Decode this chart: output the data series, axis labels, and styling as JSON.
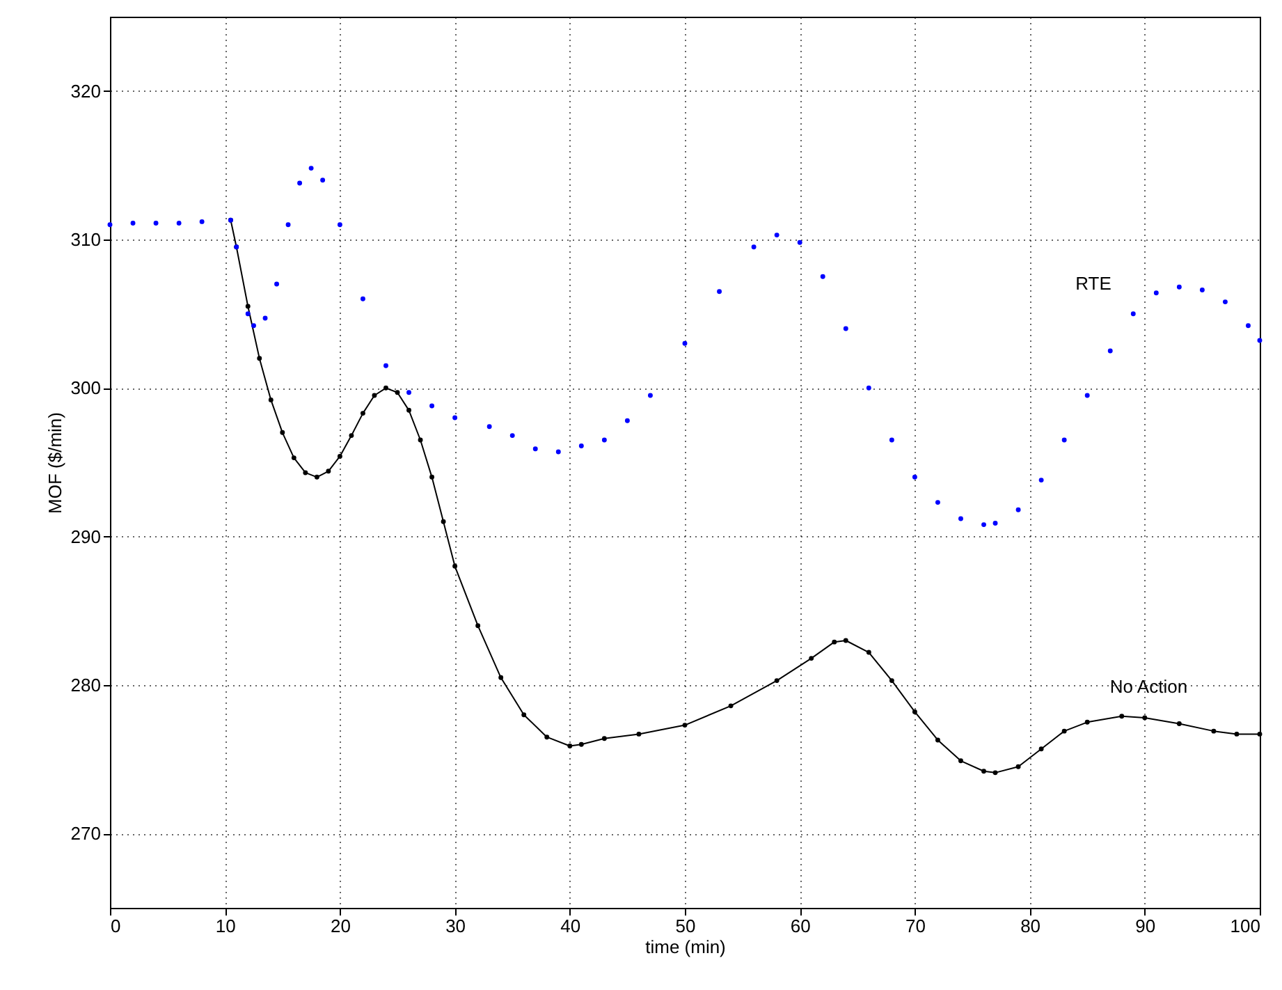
{
  "chart_data": {
    "type": "line",
    "xlabel": "time (min)",
    "ylabel": "MOF ($/min)",
    "xlim": [
      0,
      100
    ],
    "xticks": [
      0,
      10,
      20,
      30,
      40,
      50,
      60,
      70,
      80,
      90,
      100
    ],
    "ylim": [
      265,
      325
    ],
    "yticks": [
      270,
      280,
      290,
      300,
      310,
      320
    ],
    "grid": true,
    "series": [
      {
        "type": "scatter",
        "marker": "circle",
        "color": "#0000ff",
        "x": [
          0,
          2,
          4,
          6,
          8,
          10.5,
          11,
          12,
          12.5,
          13.5,
          14.5,
          15.5,
          16.5,
          17.5,
          18.5,
          20,
          22,
          24,
          26,
          28,
          30,
          33,
          35,
          37,
          39,
          41,
          43,
          45,
          47,
          50,
          53,
          56,
          58,
          60,
          62,
          64,
          66,
          68,
          70,
          72,
          74,
          76,
          77,
          79,
          81,
          83,
          85,
          87,
          89,
          91,
          93,
          95,
          97,
          99,
          100
        ],
        "name": "RTE",
        "values": [
          311.0,
          311.1,
          311.1,
          311.1,
          311.2,
          311.3,
          309.5,
          305,
          304.2,
          304.7,
          307,
          311,
          313.8,
          314.8,
          314,
          311,
          306,
          301.5,
          299.7,
          298.8,
          298,
          297.4,
          296.8,
          295.9,
          295.7,
          296.1,
          296.5,
          297.8,
          299.5,
          303,
          306.5,
          309.5,
          310.3,
          309.8,
          307.5,
          304,
          300,
          296.5,
          294,
          292.3,
          291.2,
          290.8,
          290.9,
          291.8,
          293.8,
          296.5,
          299.5,
          302.5,
          305,
          306.4,
          306.8,
          306.6,
          305.8,
          304.2,
          303.2
        ]
      },
      {
        "type": "line",
        "name": "No Action",
        "marker": "circle",
        "line_style": "solid",
        "color": "#000000",
        "x": [
          10.5,
          11,
          12,
          13,
          14,
          15,
          16,
          17,
          18,
          19,
          20,
          21,
          22,
          23,
          24,
          25,
          26,
          27,
          28,
          29,
          30,
          32,
          34,
          36,
          38,
          40,
          41,
          43,
          46,
          50,
          54,
          58,
          61,
          63,
          64,
          66,
          68,
          70,
          72,
          74,
          76,
          77,
          79,
          81,
          83,
          85,
          88,
          90,
          93,
          96,
          98,
          100
        ],
        "values": [
          311.3,
          309.5,
          305.5,
          302,
          299.2,
          297,
          295.3,
          294.3,
          294,
          294.4,
          295.4,
          296.8,
          298.3,
          299.5,
          300,
          299.7,
          298.5,
          296.5,
          294,
          291,
          288,
          284,
          280.5,
          278,
          276.5,
          275.9,
          276,
          276.4,
          276.7,
          277.3,
          278.6,
          280.3,
          281.8,
          282.9,
          283,
          282.2,
          280.3,
          278.2,
          276.3,
          274.9,
          274.2,
          274.1,
          274.5,
          275.7,
          276.9,
          277.5,
          277.9,
          277.8,
          277.4,
          276.9,
          276.7,
          276.7
        ]
      }
    ]
  }
}
